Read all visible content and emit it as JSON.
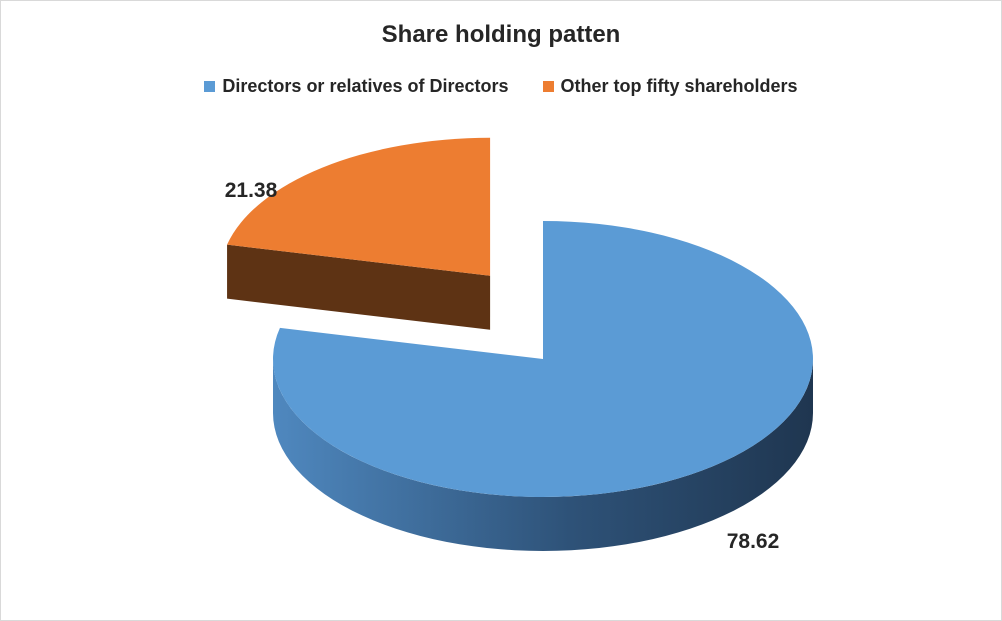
{
  "chart_data": {
    "type": "pie",
    "title": "Share holding patten",
    "categories": [
      "Directors or relatives of Directors",
      "Other top fifty shareholders"
    ],
    "values": [
      78.62,
      21.38
    ],
    "colors": [
      "#5b9bd5",
      "#ed7d31"
    ],
    "side_colors": [
      "#3e6e9c",
      "#5e3314"
    ],
    "labels": [
      "78.62",
      "21.38"
    ],
    "legend_position": "top",
    "exploded": true,
    "three_d": true
  }
}
